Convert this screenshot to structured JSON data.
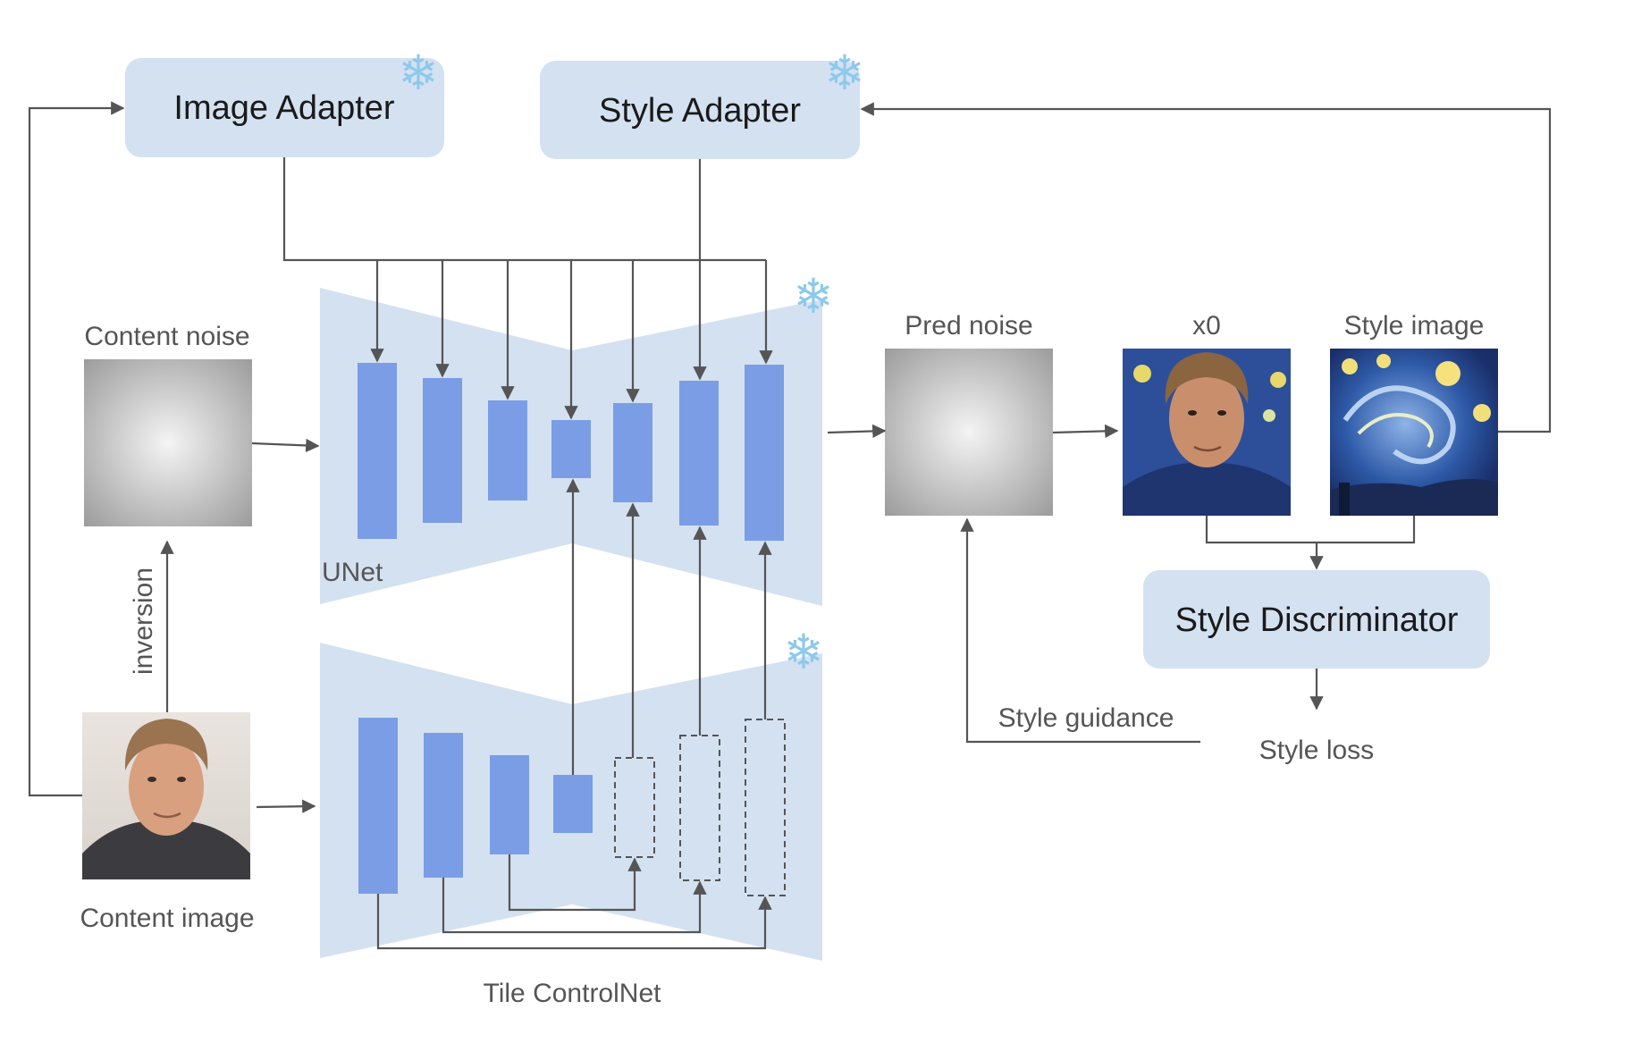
{
  "adapters": {
    "image_adapter": "Image Adapter",
    "style_adapter": "Style Adapter"
  },
  "labels": {
    "content_noise": "Content noise",
    "content_image": "Content image",
    "inversion": "inversion",
    "unet": "UNet",
    "tile_controlnet": "Tile ControlNet",
    "pred_noise": "Pred noise",
    "x0": "x0",
    "style_image": "Style image",
    "style_discriminator": "Style Discriminator",
    "style_guidance": "Style guidance",
    "style_loss": "Style loss"
  },
  "frozen_marker": "❄",
  "colors": {
    "panel": "#d4e1f1",
    "block": "#7a9de6",
    "arrow": "#555555",
    "noise_center": "#f4f4f4",
    "noise_edge": "#9c9c9c"
  }
}
